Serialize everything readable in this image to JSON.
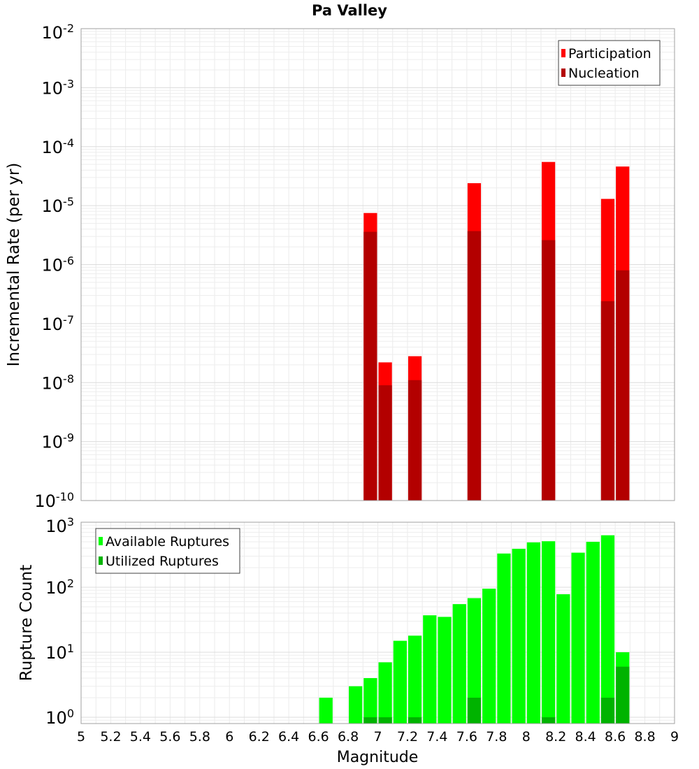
{
  "chart_data": [
    {
      "type": "bar",
      "title": "Pa Valley",
      "ylabel": "Incremental Rate (per yr)",
      "xlabel": "",
      "ylog": true,
      "ylim": [
        1e-10,
        0.01
      ],
      "xlim": [
        5,
        9
      ],
      "grid": true,
      "legend_position": "top-right",
      "y_tick_labels": [
        "10^-10",
        "10^-9",
        "10^-8",
        "10^-7",
        "10^-6",
        "10^-5",
        "10^-4",
        "10^-3",
        "10^-2"
      ],
      "series": [
        {
          "name": "Participation",
          "color": "#ff0000",
          "x": [
            6.95,
            7.05,
            7.25,
            7.65,
            8.15,
            8.55,
            8.65
          ],
          "values": [
            7.5e-06,
            2.2e-08,
            2.8e-08,
            2.4e-05,
            5.5e-05,
            1.3e-05,
            4.6e-05
          ]
        },
        {
          "name": "Nucleation",
          "color": "#b30000",
          "x": [
            6.95,
            7.05,
            7.25,
            7.65,
            8.15,
            8.55,
            8.65
          ],
          "values": [
            3.6e-06,
            9e-09,
            1.1e-08,
            3.7e-06,
            2.6e-06,
            2.4e-07,
            8e-07
          ]
        }
      ]
    },
    {
      "type": "bar",
      "ylabel": "Rupture Count",
      "xlabel": "Magnitude",
      "ylog": true,
      "ylim": [
        0.8,
        1000
      ],
      "xlim": [
        5,
        9
      ],
      "grid": true,
      "legend_position": "top-left",
      "x_tick_labels": [
        "5",
        "5.2",
        "5.4",
        "5.6",
        "5.8",
        "6",
        "6.2",
        "6.4",
        "6.6",
        "6.8",
        "7",
        "7.2",
        "7.4",
        "7.6",
        "7.8",
        "8",
        "8.2",
        "8.4",
        "8.6",
        "8.8",
        "9"
      ],
      "y_tick_labels": [
        "10^0",
        "10^1",
        "10^2",
        "10^3"
      ],
      "series": [
        {
          "name": "Available Ruptures",
          "color": "#00ff00",
          "x": [
            6.65,
            6.85,
            6.95,
            7.05,
            7.15,
            7.25,
            7.35,
            7.45,
            7.55,
            7.65,
            7.75,
            7.85,
            7.95,
            8.05,
            8.15,
            8.25,
            8.35,
            8.45,
            8.55,
            8.65
          ],
          "values": [
            2,
            3,
            4,
            7,
            15,
            18,
            37,
            35,
            55,
            68,
            95,
            330,
            390,
            490,
            510,
            78,
            340,
            500,
            630,
            10
          ]
        },
        {
          "name": "Utilized Ruptures",
          "color": "#00b300",
          "x": [
            6.95,
            7.05,
            7.25,
            7.65,
            8.15,
            8.55,
            8.65
          ],
          "values": [
            1,
            1,
            1,
            2,
            1,
            2,
            6
          ]
        }
      ]
    }
  ]
}
